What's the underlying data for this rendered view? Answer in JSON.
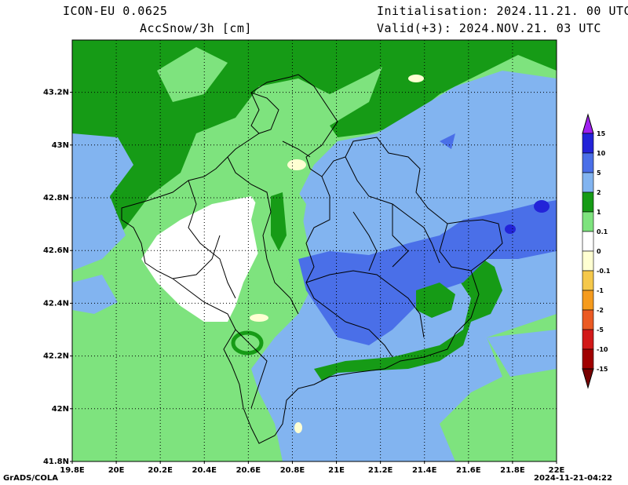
{
  "header": {
    "model": "ICON-EU 0.0625",
    "field": "AccSnow/3h [cm]",
    "init": "Initialisation: 2024.11.21. 00 UTC",
    "valid": "Valid(+3): 2024.NOV.21. 03 UTC"
  },
  "footer": {
    "left": "GrADS/COLA",
    "right": "2024-11-21-04:22"
  },
  "axes": {
    "lat_labels": [
      "43.2N",
      "43N",
      "42.8N",
      "42.6N",
      "42.4N",
      "42.2N",
      "42N",
      "41.8N"
    ],
    "lon_labels": [
      "19.8E",
      "20E",
      "20.2E",
      "20.4E",
      "20.6E",
      "20.8E",
      "21E",
      "21.2E",
      "21.4E",
      "21.6E",
      "21.8E",
      "22E"
    ]
  },
  "colorbar": {
    "labels": [
      "15",
      "10",
      "5",
      "2",
      "1",
      "0.1",
      "0",
      "-0.1",
      "-1",
      "-2",
      "-5",
      "-10",
      "-15"
    ],
    "colors": [
      "#2323d8",
      "#4a6fe8",
      "#82b4f0",
      "#169b16",
      "#7ee37e",
      "#ffffff",
      "#ffffd2",
      "#f5c84b",
      "#f59b1e",
      "#eb5a23",
      "#d21919",
      "#a00000"
    ],
    "top_arrow_color": "#a020f0",
    "bottom_arrow_color": "#780000"
  }
}
